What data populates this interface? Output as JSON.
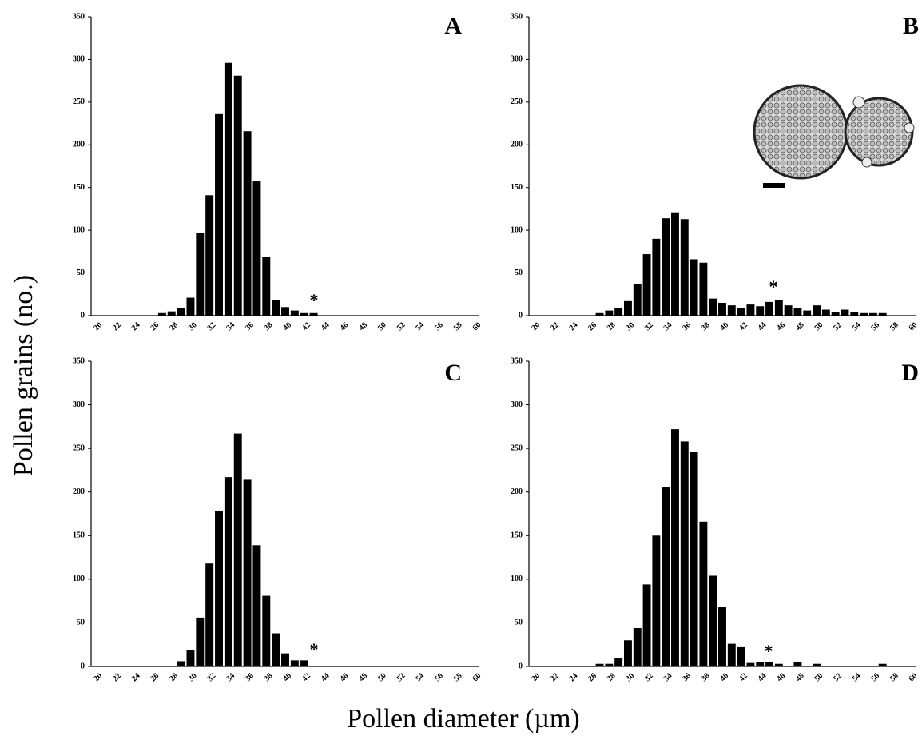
{
  "ylabel": "Pollen grains (no.)",
  "xlabel": "Pollen diameter (µm)",
  "chart_data": [
    {
      "type": "bar",
      "label": "A",
      "annotation": "*",
      "color": "#000000",
      "categories": [
        20,
        null,
        22,
        null,
        24,
        null,
        26,
        null,
        28,
        null,
        30,
        null,
        32,
        null,
        34,
        null,
        36,
        null,
        38,
        null,
        40,
        null,
        42,
        null,
        44,
        null,
        46,
        null,
        48,
        null,
        50,
        null,
        52,
        null,
        54,
        null,
        56,
        null,
        58,
        null,
        60
      ],
      "values": [
        0,
        0,
        0,
        0,
        0,
        0,
        0,
        3,
        5,
        9,
        21,
        97,
        141,
        236,
        296,
        281,
        216,
        158,
        69,
        18,
        10,
        6,
        3,
        3,
        0,
        0,
        0,
        0,
        0,
        0,
        0,
        0,
        0,
        0,
        0,
        0,
        0,
        0,
        0,
        0,
        0
      ],
      "ylim": [
        0,
        350
      ],
      "yticks": [
        0,
        50,
        100,
        150,
        200,
        250,
        300,
        350
      ]
    },
    {
      "type": "bar",
      "label": "B",
      "annotation": "*",
      "color": "#000000",
      "categories": [
        20,
        null,
        22,
        null,
        24,
        null,
        26,
        null,
        28,
        null,
        30,
        null,
        32,
        null,
        34,
        null,
        36,
        null,
        38,
        null,
        40,
        null,
        42,
        null,
        44,
        null,
        46,
        null,
        48,
        null,
        50,
        null,
        52,
        null,
        54,
        null,
        56,
        null,
        58,
        null,
        60
      ],
      "values": [
        0,
        0,
        0,
        0,
        0,
        0,
        0,
        3,
        6,
        9,
        17,
        37,
        72,
        90,
        114,
        121,
        113,
        66,
        62,
        20,
        15,
        12,
        9,
        13,
        11,
        16,
        18,
        12,
        9,
        6,
        12,
        7,
        4,
        7,
        4,
        3,
        3,
        3,
        0,
        0,
        0
      ],
      "ylim": [
        0,
        350
      ],
      "yticks": [
        0,
        50,
        100,
        150,
        200,
        250,
        300,
        350
      ]
    },
    {
      "type": "bar",
      "label": "C",
      "annotation": "*",
      "color": "#000000",
      "categories": [
        20,
        null,
        22,
        null,
        24,
        null,
        26,
        null,
        28,
        null,
        30,
        null,
        32,
        null,
        34,
        null,
        36,
        null,
        38,
        null,
        40,
        null,
        42,
        null,
        44,
        null,
        46,
        null,
        48,
        null,
        50,
        null,
        52,
        null,
        54,
        null,
        56,
        null,
        58,
        null,
        60
      ],
      "values": [
        0,
        0,
        0,
        0,
        0,
        0,
        0,
        0,
        0,
        6,
        19,
        56,
        118,
        178,
        217,
        267,
        214,
        139,
        81,
        38,
        15,
        7,
        7,
        0,
        0,
        0,
        0,
        0,
        0,
        0,
        0,
        0,
        0,
        0,
        0,
        0,
        0,
        0,
        0,
        0,
        0
      ],
      "ylim": [
        0,
        350
      ],
      "yticks": [
        0,
        50,
        100,
        150,
        200,
        250,
        300,
        350
      ]
    },
    {
      "type": "bar",
      "label": "D",
      "annotation": "*",
      "color": "#000000",
      "categories": [
        20,
        null,
        22,
        null,
        24,
        null,
        26,
        null,
        28,
        null,
        30,
        null,
        32,
        null,
        34,
        null,
        36,
        null,
        38,
        null,
        40,
        null,
        42,
        null,
        44,
        null,
        46,
        null,
        48,
        null,
        50,
        null,
        52,
        null,
        54,
        null,
        56,
        null,
        58,
        null,
        60
      ],
      "values": [
        0,
        0,
        0,
        0,
        0,
        0,
        0,
        3,
        3,
        10,
        30,
        44,
        94,
        150,
        206,
        272,
        258,
        246,
        166,
        104,
        68,
        26,
        23,
        4,
        5,
        5,
        3,
        0,
        5,
        0,
        3,
        0,
        0,
        0,
        0,
        0,
        0,
        3,
        0,
        0,
        0
      ],
      "ylim": [
        0,
        350
      ],
      "yticks": [
        0,
        50,
        100,
        150,
        200,
        250,
        300,
        350
      ]
    }
  ]
}
